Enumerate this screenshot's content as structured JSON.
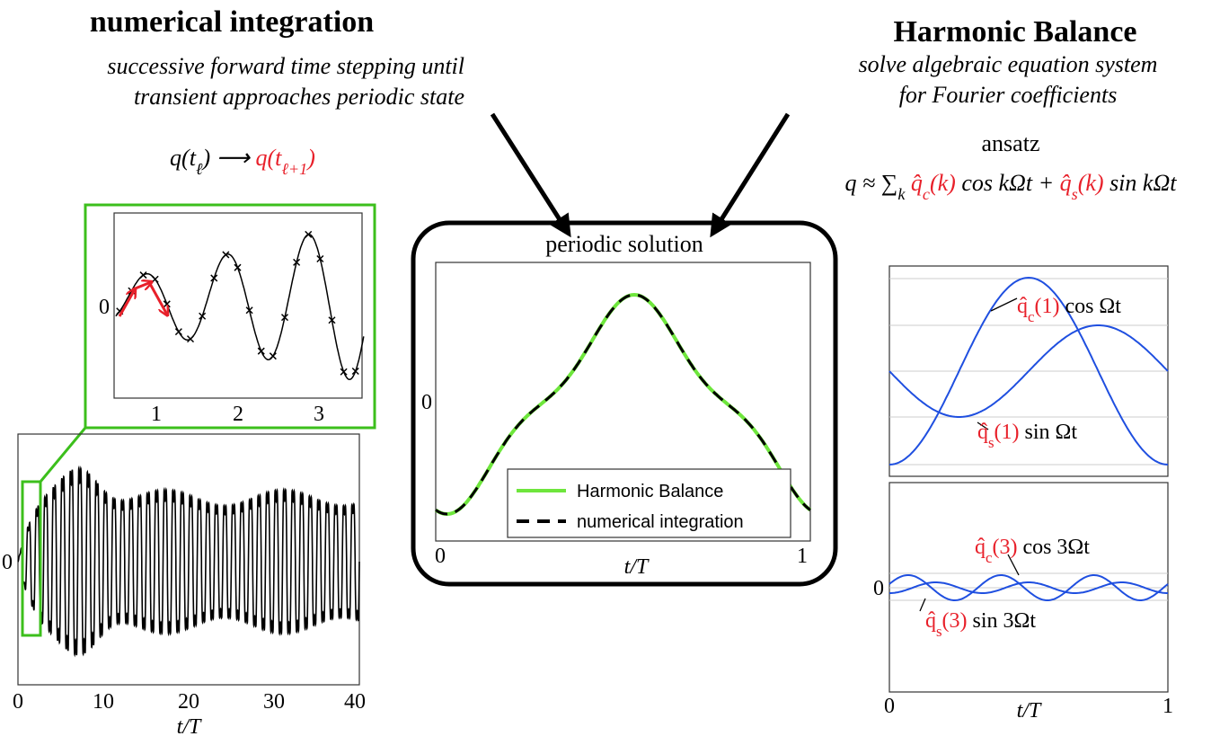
{
  "left": {
    "title": "numerical integration",
    "subtitle": [
      "successive forward time stepping until",
      "transient approaches periodic state"
    ],
    "formula": [
      {
        "text": "q(t"
      },
      {
        "text": "ℓ",
        "sub": true
      },
      {
        "text": ") ⟶ "
      },
      {
        "text": "q(t",
        "color": "#e8202a"
      },
      {
        "text": "ℓ+1",
        "sub": true,
        "color": "#e8202a"
      },
      {
        "text": ")",
        "color": "#e8202a"
      }
    ]
  },
  "zoom_plot": {
    "xticks": [
      "1",
      "2",
      "3"
    ],
    "yticks": [
      "0"
    ]
  },
  "transient_plot": {
    "xticks": [
      "0",
      "10",
      "20",
      "30",
      "40"
    ],
    "yticks": [
      "0"
    ],
    "xlabel": "t/T"
  },
  "center": {
    "title": "periodic solution",
    "xticks": [
      "0",
      "1"
    ],
    "yticks": [
      "0"
    ],
    "xlabel": "t/T",
    "legend": [
      "Harmonic Balance",
      "numerical integration"
    ]
  },
  "right": {
    "title": "Harmonic Balance",
    "subtitle": [
      "solve algebraic equation system",
      "for Fourier coefficients"
    ],
    "ansatz_label": "ansatz",
    "ansatz": [
      {
        "text": "q ≈ ∑"
      },
      {
        "text": "k",
        "sub": true
      },
      {
        "text": " q̂",
        "color": "#e8202a"
      },
      {
        "text": "c",
        "sub": true,
        "color": "#e8202a"
      },
      {
        "text": "(k)",
        "color": "#e8202a"
      },
      {
        "text": " cos kΩt + "
      },
      {
        "text": "q̂",
        "color": "#e8202a"
      },
      {
        "text": "s",
        "sub": true,
        "color": "#e8202a"
      },
      {
        "text": "(k)",
        "color": "#e8202a"
      },
      {
        "text": " sin kΩt"
      }
    ]
  },
  "hb_plot_1": {
    "labels": [
      [
        {
          "text": "q̂",
          "color": "#e8202a"
        },
        {
          "text": "c",
          "sub": true,
          "color": "#e8202a"
        },
        {
          "text": "(1)",
          "color": "#e8202a"
        },
        {
          "text": " cos Ωt"
        }
      ],
      [
        {
          "text": "q̂",
          "color": "#e8202a"
        },
        {
          "text": "s",
          "sub": true,
          "color": "#e8202a"
        },
        {
          "text": "(1)",
          "color": "#e8202a"
        },
        {
          "text": " sin Ωt"
        }
      ]
    ]
  },
  "hb_plot_2": {
    "yticks": [
      "0"
    ],
    "xticks": [
      "0",
      "1"
    ],
    "xlabel": "t/T",
    "labels": [
      [
        {
          "text": "q̂",
          "color": "#e8202a"
        },
        {
          "text": "c",
          "sub": true,
          "color": "#e8202a"
        },
        {
          "text": "(3)",
          "color": "#e8202a"
        },
        {
          "text": " cos 3Ωt"
        }
      ],
      [
        {
          "text": "q̂",
          "color": "#e8202a"
        },
        {
          "text": "s",
          "sub": true,
          "color": "#e8202a"
        },
        {
          "text": "(3)",
          "color": "#e8202a"
        },
        {
          "text": " sin 3Ωt"
        }
      ]
    ]
  }
}
